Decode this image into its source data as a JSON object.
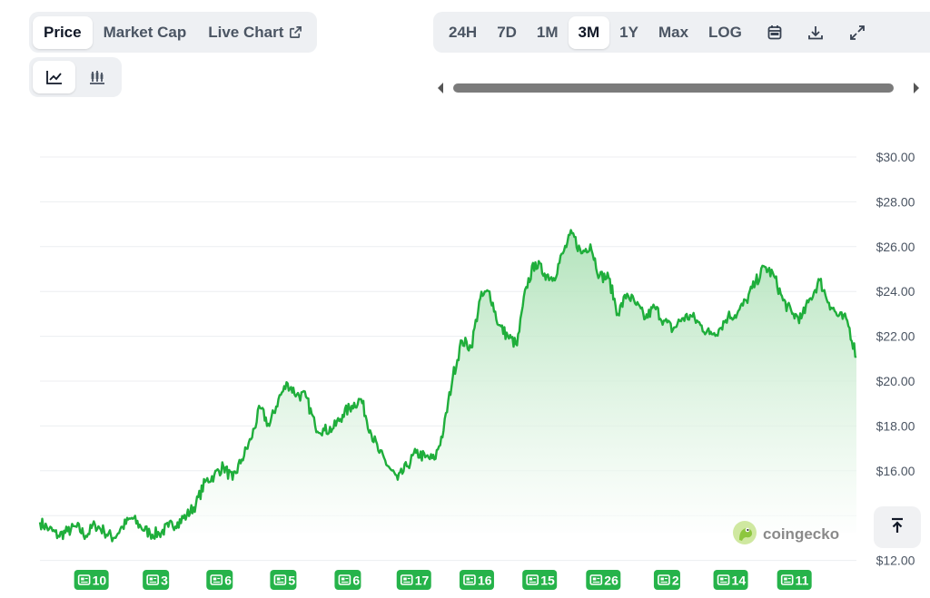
{
  "metric_tabs": [
    {
      "label": "Price",
      "active": true
    },
    {
      "label": "Market Cap",
      "active": false
    },
    {
      "label": "Live Chart",
      "active": false
    }
  ],
  "view_toggle": [
    {
      "icon": "line-chart-icon",
      "active": true
    },
    {
      "icon": "candlestick-chart-icon",
      "active": false
    }
  ],
  "range_tabs": [
    {
      "label": "24H",
      "active": false
    },
    {
      "label": "7D",
      "active": false
    },
    {
      "label": "1M",
      "active": false
    },
    {
      "label": "3M",
      "active": true
    },
    {
      "label": "1Y",
      "active": false
    },
    {
      "label": "Max",
      "active": false
    },
    {
      "label": "LOG",
      "active": false
    }
  ],
  "toolbar_icons": [
    "calendar-icon",
    "download-icon",
    "expand-icon"
  ],
  "watermark": "coingecko",
  "colors": {
    "line": "#1fae3b",
    "area_top": "#a9e0b3",
    "area_bottom": "#ffffff",
    "gridline": "#eceef1",
    "badge": "#26b34a",
    "axis_text": "#4b5563"
  },
  "chart_data": {
    "type": "line",
    "series": [
      {
        "values": [
          13.7,
          13.4,
          13.1,
          13.3,
          13.5,
          13.1,
          13.6,
          13.3,
          13.0,
          13.5,
          13.9,
          13.5,
          13.2,
          13.2,
          13.5,
          13.7,
          14.0,
          14.5,
          15.5,
          15.8,
          16.2,
          15.6,
          16.5,
          17.4,
          18.8,
          18.0,
          19.2,
          19.9,
          19.4,
          19.3,
          18.0,
          17.8,
          17.9,
          18.5,
          18.9,
          19.2,
          17.8,
          16.8,
          16.2,
          15.6,
          16.2,
          16.8,
          16.6,
          16.5,
          17.8,
          20.2,
          21.8,
          21.5,
          23.7,
          24.0,
          22.5,
          22.0,
          21.6,
          24.2,
          25.3,
          24.8,
          24.6,
          25.7,
          26.6,
          25.7,
          26.1,
          24.7,
          24.6,
          23.0,
          23.9,
          23.4,
          22.8,
          23.3,
          22.7,
          22.3,
          22.8,
          22.9,
          22.5,
          22.1,
          22.3,
          22.9,
          23.0,
          23.6,
          24.4,
          25.1,
          24.7,
          23.6,
          23.0,
          22.8,
          23.7,
          24.5,
          23.5,
          22.9,
          22.7,
          21.1
        ]
      }
    ],
    "ylim": [
      12,
      30
    ],
    "y_ticks": [
      "$30.00",
      "$28.00",
      "$26.00",
      "$24.00",
      "$22.00",
      "$20.00",
      "$18.00",
      "$16.00",
      "$12.00"
    ],
    "y_tick_values": [
      30,
      28,
      26,
      24,
      22,
      20,
      18,
      16,
      12
    ],
    "grid": true,
    "news_badges": [
      {
        "label": "10",
        "at": 0.063
      },
      {
        "label": "3",
        "at": 0.142
      },
      {
        "label": "6",
        "at": 0.22
      },
      {
        "label": "5",
        "at": 0.298
      },
      {
        "label": "6",
        "at": 0.377
      },
      {
        "label": "17",
        "at": 0.458
      },
      {
        "label": "16",
        "at": 0.535
      },
      {
        "label": "15",
        "at": 0.612
      },
      {
        "label": "26",
        "at": 0.69
      },
      {
        "label": "2",
        "at": 0.768
      },
      {
        "label": "14",
        "at": 0.846
      },
      {
        "label": "11",
        "at": 0.924
      }
    ]
  }
}
